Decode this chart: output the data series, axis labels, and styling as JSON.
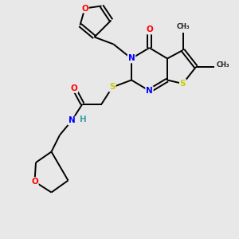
{
  "bg_color": "#e8e8e8",
  "bond_color": "#000000",
  "atom_colors": {
    "O": "#ff0000",
    "N": "#0000ff",
    "S": "#cccc00",
    "C": "#000000",
    "H": "#40a0a0"
  },
  "lw": 1.4,
  "fs": 7.5
}
